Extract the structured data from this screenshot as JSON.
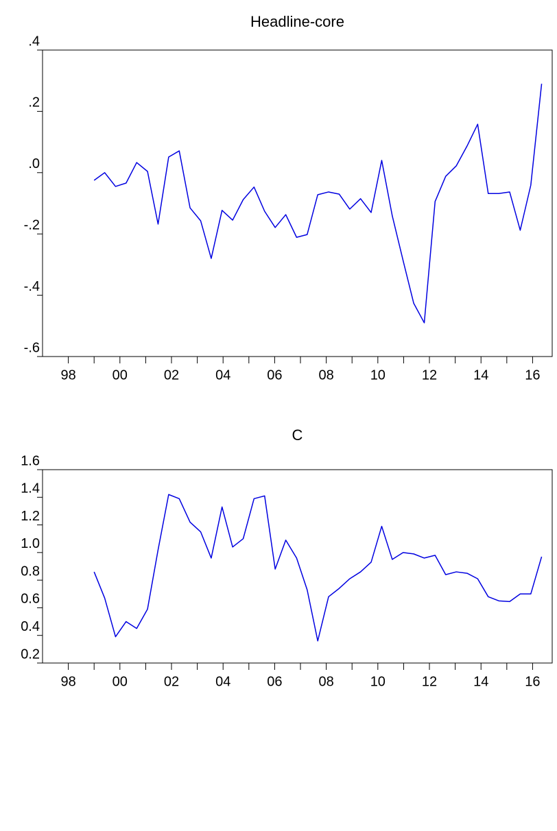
{
  "chart_data": [
    {
      "type": "line",
      "title": "Headline-core",
      "x": [
        1999,
        1999.41,
        1999.83,
        2000.24,
        2000.65,
        2001.07,
        2001.48,
        2001.89,
        2002.3,
        2002.72,
        2003.13,
        2003.54,
        2003.96,
        2004.37,
        2004.78,
        2005.2,
        2005.61,
        2006.02,
        2006.43,
        2006.85,
        2007.26,
        2007.67,
        2008.09,
        2008.5,
        2008.91,
        2009.33,
        2009.74,
        2010.15,
        2010.56,
        2010.98,
        2011.39,
        2011.8,
        2012.22,
        2012.63,
        2013.04,
        2013.46,
        2013.87,
        2014.28,
        2014.69,
        2015.11,
        2015.52,
        2015.93,
        2016.35
      ],
      "series": [
        {
          "color": "#0000e0",
          "values": [
            -0.025,
            0.0,
            -0.045,
            -0.034,
            0.033,
            0.004,
            -0.168,
            0.051,
            0.071,
            -0.115,
            -0.157,
            -0.28,
            -0.123,
            -0.155,
            -0.088,
            -0.047,
            -0.126,
            -0.179,
            -0.137,
            -0.211,
            -0.202,
            -0.072,
            -0.063,
            -0.07,
            -0.119,
            -0.085,
            -0.13,
            0.04,
            -0.141,
            -0.287,
            -0.426,
            -0.49,
            -0.094,
            -0.012,
            0.022,
            0.087,
            0.158,
            -0.068,
            -0.068,
            -0.063,
            -0.188,
            -0.041,
            0.29
          ]
        }
      ],
      "xlim": [
        1997,
        2016.76
      ],
      "xticks": [
        {
          "value": 1998,
          "label": "98"
        },
        {
          "value": 2000,
          "label": "00"
        },
        {
          "value": 2002,
          "label": "02"
        },
        {
          "value": 2004,
          "label": "04"
        },
        {
          "value": 2006,
          "label": "06"
        },
        {
          "value": 2008,
          "label": "08"
        },
        {
          "value": 2010,
          "label": "10"
        },
        {
          "value": 2012,
          "label": "12"
        },
        {
          "value": 2014,
          "label": "14"
        },
        {
          "value": 2016,
          "label": "16"
        }
      ],
      "xminorticks": [
        1999,
        2001,
        2003,
        2005,
        2007,
        2009,
        2011,
        2013,
        2015
      ],
      "ylim": [
        -0.6,
        0.4
      ],
      "yticks": [
        {
          "value": -0.6,
          "label": "-.6"
        },
        {
          "value": -0.4,
          "label": "-.4"
        },
        {
          "value": -0.2,
          "label": "-.2"
        },
        {
          "value": 0,
          "label": ".0"
        },
        {
          "value": 0.2,
          "label": ".2"
        },
        {
          "value": 0.4,
          "label": ".4"
        }
      ]
    },
    {
      "type": "line",
      "title": "C",
      "x": [
        1999,
        1999.41,
        1999.83,
        2000.24,
        2000.65,
        2001.07,
        2001.48,
        2001.89,
        2002.3,
        2002.72,
        2003.13,
        2003.54,
        2003.96,
        2004.37,
        2004.78,
        2005.2,
        2005.61,
        2006.02,
        2006.43,
        2006.85,
        2007.26,
        2007.67,
        2008.09,
        2008.5,
        2008.91,
        2009.33,
        2009.74,
        2010.15,
        2010.56,
        2010.98,
        2011.39,
        2011.8,
        2012.22,
        2012.63,
        2013.04,
        2013.46,
        2013.87,
        2014.28,
        2014.69,
        2015.11,
        2015.52,
        2015.93,
        2016.35
      ],
      "series": [
        {
          "color": "#0000e0",
          "values": [
            0.86,
            0.67,
            0.39,
            0.5,
            0.45,
            0.59,
            1.02,
            1.42,
            1.39,
            1.22,
            1.15,
            0.96,
            1.33,
            1.04,
            1.1,
            1.39,
            1.41,
            0.88,
            1.09,
            0.96,
            0.73,
            0.36,
            0.68,
            0.74,
            0.81,
            0.86,
            0.93,
            1.19,
            0.95,
            1.0,
            0.99,
            0.96,
            0.98,
            0.84,
            0.86,
            0.85,
            0.81,
            0.68,
            0.65,
            0.645,
            0.7,
            0.7,
            0.97
          ]
        }
      ],
      "xlim": [
        1997,
        2016.76
      ],
      "xticks": [
        {
          "value": 1998,
          "label": "98"
        },
        {
          "value": 2000,
          "label": "00"
        },
        {
          "value": 2002,
          "label": "02"
        },
        {
          "value": 2004,
          "label": "04"
        },
        {
          "value": 2006,
          "label": "06"
        },
        {
          "value": 2008,
          "label": "08"
        },
        {
          "value": 2010,
          "label": "10"
        },
        {
          "value": 2012,
          "label": "12"
        },
        {
          "value": 2014,
          "label": "14"
        },
        {
          "value": 2016,
          "label": "16"
        }
      ],
      "xminorticks": [
        1999,
        2001,
        2003,
        2005,
        2007,
        2009,
        2011,
        2013,
        2015
      ],
      "ylim": [
        0.2,
        1.6
      ],
      "yticks": [
        0.2,
        0.4,
        0.6,
        0.8,
        {
          "value": 1,
          "label": "1.0"
        },
        1.2,
        1.4,
        1.6
      ]
    }
  ]
}
